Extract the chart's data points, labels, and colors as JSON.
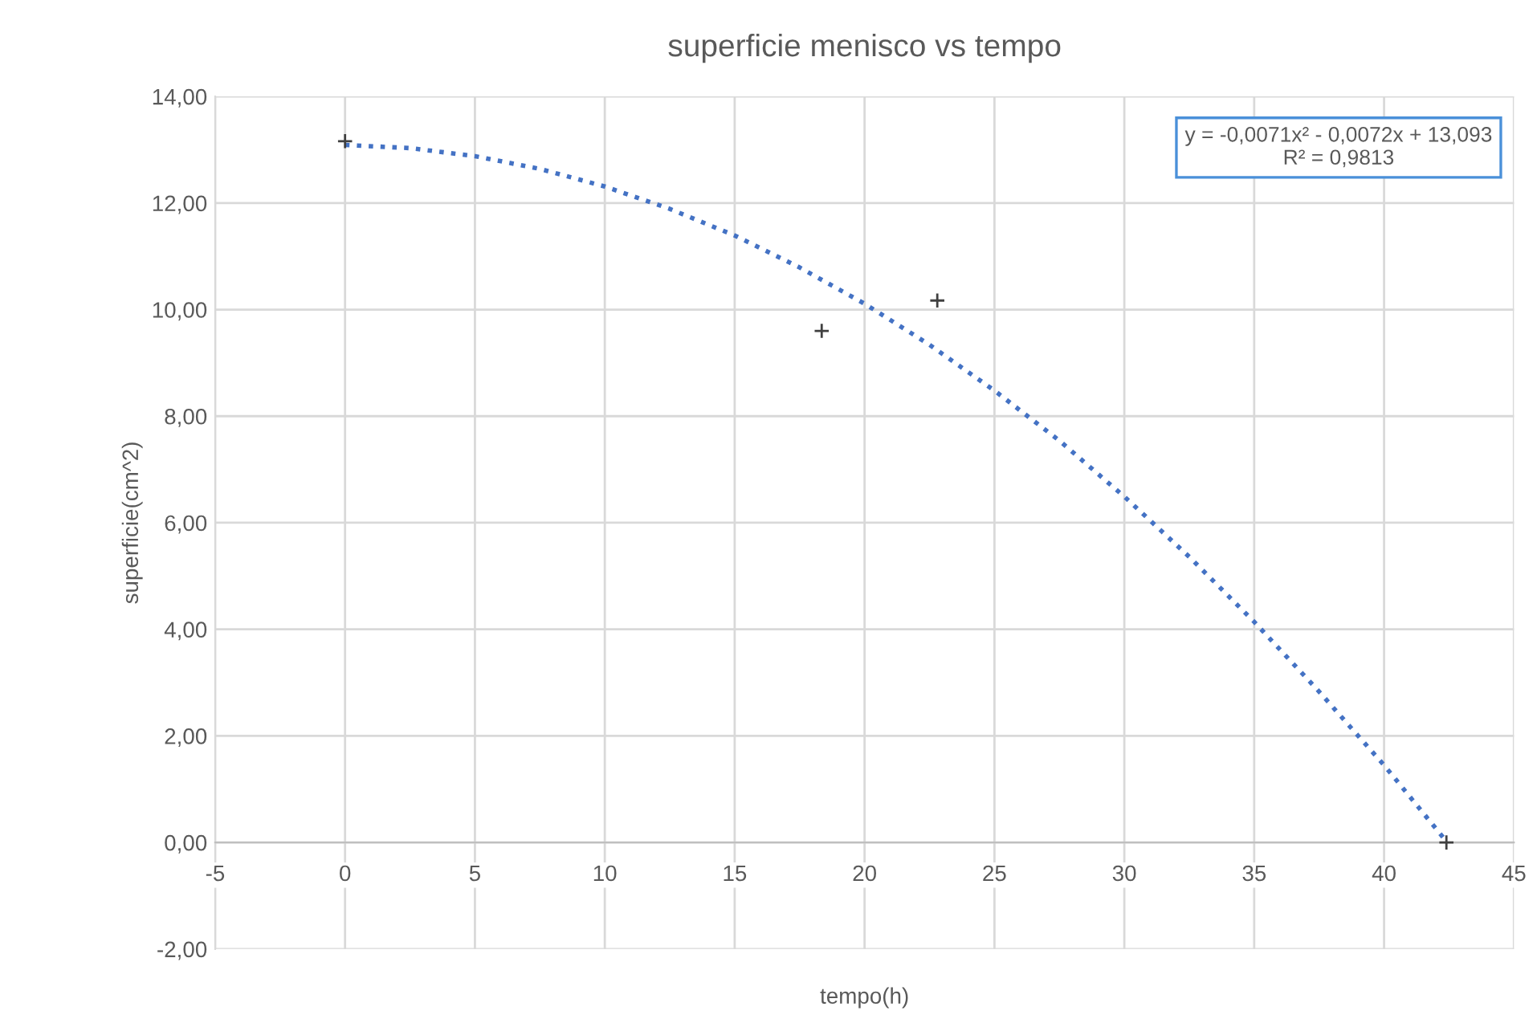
{
  "chart_data": {
    "type": "scatter",
    "title": "superficie menisco vs tempo",
    "xlabel": "tempo(h)",
    "ylabel": "superficie(cm^2)",
    "series": [
      {
        "color": "#404040",
        "marker": "cross",
        "x": [
          0,
          18.35,
          22.8,
          42.4
        ],
        "values": [
          13.16,
          9.6,
          10.17,
          0
        ]
      },
      {
        "type": "line",
        "color": "#4472c4",
        "line_style": "dotted",
        "marker": "none",
        "x": [
          0,
          2.5,
          5,
          7.5,
          10,
          12.5,
          15,
          17.5,
          20,
          22.5,
          25,
          27.5,
          30,
          32.5,
          35,
          37.5,
          40,
          42.4
        ],
        "values": [
          13.09,
          13.03,
          12.88,
          12.64,
          12.31,
          11.89,
          11.39,
          10.79,
          10.11,
          9.34,
          8.48,
          7.54,
          6.49,
          5.36,
          4.14,
          2.83,
          1.45,
          0.02
        ]
      }
    ],
    "annotations": [
      "y = -0,0071x² - 0,0072x + 13,093\nR² = 0,9813"
    ],
    "xlim": [
      -5,
      45
    ],
    "xticks": [
      -5,
      0,
      5,
      10,
      15,
      20,
      25,
      30,
      35,
      40,
      45
    ],
    "ylim": [
      -2,
      14
    ],
    "yticks": [
      {
        "value": -2,
        "label": "-2,00"
      },
      {
        "value": 0,
        "label": "0,00"
      },
      {
        "value": 2,
        "label": "2,00"
      },
      {
        "value": 4,
        "label": "4,00"
      },
      {
        "value": 6,
        "label": "6,00"
      },
      {
        "value": 8,
        "label": "8,00"
      },
      {
        "value": 10,
        "label": "10,00"
      },
      {
        "value": 12,
        "label": "12,00"
      },
      {
        "value": 14,
        "label": "14,00"
      }
    ],
    "grid": true,
    "legend": false
  }
}
